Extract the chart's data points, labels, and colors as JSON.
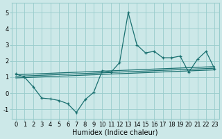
{
  "xlabel": "Humidex (Indice chaleur)",
  "background_color": "#cce8e8",
  "grid_color": "#99cccc",
  "line_color": "#1a7070",
  "xlim": [
    -0.5,
    23.5
  ],
  "ylim": [
    -1.6,
    5.6
  ],
  "xticks": [
    0,
    1,
    2,
    3,
    4,
    5,
    6,
    7,
    8,
    9,
    10,
    11,
    12,
    13,
    14,
    15,
    16,
    17,
    18,
    19,
    20,
    21,
    22,
    23
  ],
  "yticks": [
    -1,
    0,
    1,
    2,
    3,
    4,
    5
  ],
  "line1_x": [
    0,
    1,
    2,
    3,
    4,
    5,
    6,
    7,
    8,
    9,
    10,
    11,
    12,
    13,
    14,
    15,
    16,
    17,
    18,
    19,
    20,
    21,
    22,
    23
  ],
  "line1_y": [
    1.2,
    1.0,
    0.4,
    -0.3,
    -0.35,
    -0.45,
    -0.65,
    -1.2,
    -0.4,
    0.05,
    1.4,
    1.3,
    1.9,
    5.0,
    3.0,
    2.5,
    2.6,
    2.2,
    2.2,
    2.3,
    1.3,
    2.1,
    2.6,
    1.5
  ],
  "line2_x": [
    0,
    23
  ],
  "line2_y": [
    1.15,
    1.65
  ],
  "line3_x": [
    0,
    23
  ],
  "line3_y": [
    1.05,
    1.55
  ],
  "line4_x": [
    0,
    23
  ],
  "line4_y": [
    0.95,
    1.45
  ]
}
